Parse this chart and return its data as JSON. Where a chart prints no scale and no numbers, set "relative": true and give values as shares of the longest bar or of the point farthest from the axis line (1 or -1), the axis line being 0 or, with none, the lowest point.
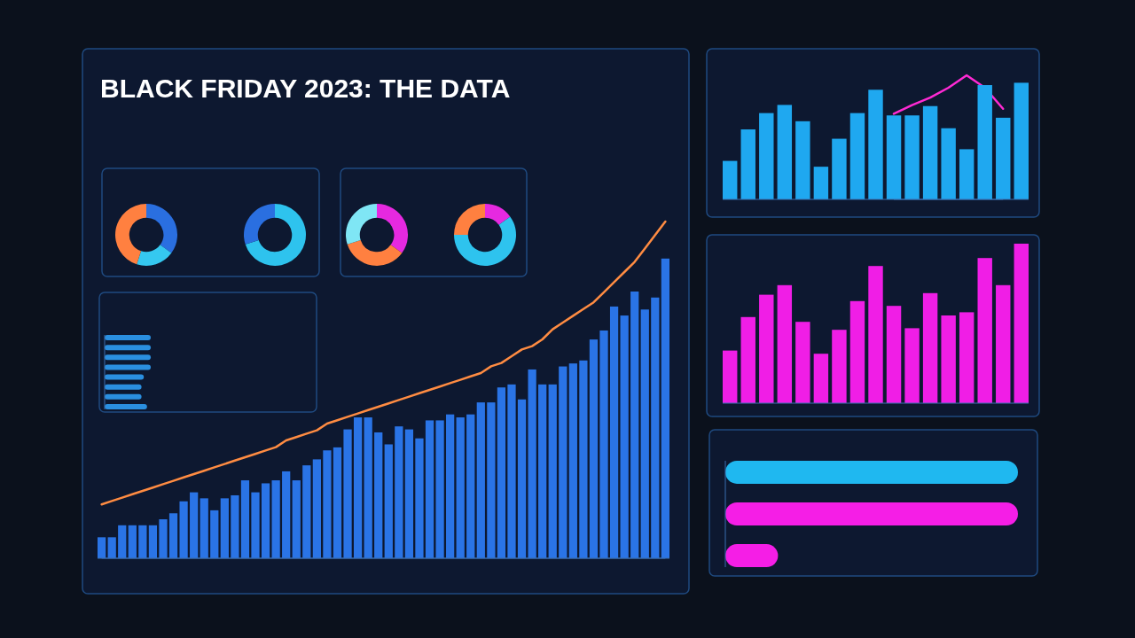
{
  "chart_data": [
    {
      "type": "bar",
      "title": "BLACK FRIDAY 2023: THE DATA",
      "relative": true,
      "categories": [
        null,
        null,
        null,
        null,
        null,
        null,
        null,
        null,
        null,
        null,
        null,
        null,
        null,
        null,
        null,
        null,
        null,
        null,
        null,
        null,
        null,
        null,
        null,
        null,
        null,
        null,
        null,
        null,
        null,
        null,
        null,
        null,
        null,
        null,
        null,
        null,
        null,
        null,
        null,
        null,
        null,
        null,
        null,
        null,
        null,
        null,
        null,
        null,
        null,
        null,
        null,
        null,
        null,
        null,
        null,
        null
      ],
      "series": [
        {
          "color": "#2a74e6",
          "values": [
            0.07,
            0.07,
            0.11,
            0.11,
            0.11,
            0.11,
            0.13,
            0.15,
            0.19,
            0.22,
            0.2,
            0.16,
            0.2,
            0.21,
            0.26,
            0.22,
            0.25,
            0.26,
            0.29,
            0.26,
            0.31,
            0.33,
            0.36,
            0.37,
            0.43,
            0.47,
            0.47,
            0.42,
            0.38,
            0.44,
            0.43,
            0.4,
            0.46,
            0.46,
            0.48,
            0.47,
            0.48,
            0.52,
            0.52,
            0.57,
            0.58,
            0.53,
            0.63,
            0.58,
            0.58,
            0.64,
            0.65,
            0.66,
            0.73,
            0.76,
            0.84,
            0.81,
            0.89,
            0.83,
            0.87,
            1.0
          ]
        }
      ]
    },
    {
      "type": "line",
      "relative": true,
      "categories": [
        null,
        null,
        null,
        null,
        null,
        null,
        null,
        null,
        null,
        null,
        null,
        null,
        null,
        null,
        null,
        null,
        null,
        null,
        null,
        null,
        null,
        null,
        null,
        null,
        null,
        null,
        null,
        null,
        null,
        null,
        null,
        null,
        null,
        null,
        null,
        null,
        null,
        null,
        null,
        null,
        null,
        null,
        null,
        null,
        null,
        null,
        null,
        null,
        null,
        null,
        null,
        null,
        null,
        null,
        null,
        null
      ],
      "series": [
        {
          "color": "#ff8c42",
          "values": [
            0.16,
            0.17,
            0.18,
            0.19,
            0.2,
            0.21,
            0.22,
            0.23,
            0.24,
            0.25,
            0.26,
            0.27,
            0.28,
            0.29,
            0.3,
            0.31,
            0.32,
            0.33,
            0.35,
            0.36,
            0.37,
            0.38,
            0.4,
            0.41,
            0.42,
            0.43,
            0.44,
            0.45,
            0.46,
            0.47,
            0.48,
            0.49,
            0.5,
            0.51,
            0.52,
            0.53,
            0.54,
            0.55,
            0.57,
            0.58,
            0.6,
            0.62,
            0.63,
            0.65,
            0.68,
            0.7,
            0.72,
            0.74,
            0.76,
            0.79,
            0.82,
            0.85,
            0.88,
            0.92,
            0.96,
            1.0
          ]
        }
      ]
    },
    {
      "type": "bar",
      "relative": true,
      "categories": [
        null,
        null,
        null,
        null,
        null,
        null,
        null,
        null,
        null,
        null,
        null,
        null,
        null,
        null,
        null,
        null,
        null
      ],
      "series": [
        {
          "color": "#1fa8f0",
          "values": [
            0.33,
            0.6,
            0.74,
            0.81,
            0.67,
            0.28,
            0.52,
            0.74,
            0.94,
            0.72,
            0.72,
            0.8,
            0.61,
            0.43,
            0.98,
            0.7,
            1.0
          ]
        }
      ]
    },
    {
      "type": "line",
      "relative": true,
      "categories": [
        null,
        null,
        null,
        null,
        null,
        null,
        null
      ],
      "series": [
        {
          "color": "#ff2ad4",
          "values": [
            0.69,
            0.76,
            0.82,
            0.9,
            1.0,
            0.9,
            0.73
          ]
        }
      ]
    },
    {
      "type": "bar",
      "relative": true,
      "categories": [
        null,
        null,
        null,
        null,
        null,
        null,
        null,
        null,
        null,
        null,
        null,
        null,
        null,
        null,
        null,
        null,
        null
      ],
      "series": [
        {
          "color": "#f01ee6",
          "values": [
            0.33,
            0.54,
            0.68,
            0.74,
            0.51,
            0.31,
            0.46,
            0.64,
            0.86,
            0.61,
            0.47,
            0.69,
            0.55,
            0.57,
            0.91,
            0.74,
            1.0
          ]
        }
      ]
    },
    {
      "type": "bar",
      "orientation": "horizontal",
      "relative": true,
      "categories": [
        null,
        null,
        null
      ],
      "values": [
        1,
        1,
        0.18
      ],
      "colors": [
        "#1fb8f0",
        "#f51ee6",
        "#f51ee6"
      ]
    },
    {
      "type": "bar",
      "orientation": "horizontal",
      "relative": true,
      "categories": [
        null,
        null,
        null,
        null,
        null,
        null,
        null,
        null
      ],
      "values": [
        1,
        1,
        1,
        1,
        0.85,
        0.8,
        0.8,
        0.92
      ],
      "colors": [
        "#2a8fe0",
        "#2a8fe0",
        "#2a8fe0",
        "#2a8fe0",
        "#2a8fe0",
        "#2a8fe0",
        "#2a8fe0",
        "#2a8fe0"
      ]
    },
    {
      "type": "donut",
      "categories": [
        null,
        null,
        null
      ],
      "values": [
        35,
        20,
        45
      ],
      "colors": [
        "#2a6fe0",
        "#35c8f0",
        "#ff8040"
      ]
    },
    {
      "type": "donut",
      "categories": [
        null,
        null
      ],
      "values": [
        70,
        30
      ],
      "colors": [
        "#2ec3ee",
        "#2a6fe0"
      ]
    },
    {
      "type": "donut",
      "categories": [
        null,
        null,
        null
      ],
      "values": [
        35,
        35,
        30
      ],
      "colors": [
        "#e629e0",
        "#ff8040",
        "#7fe6f5"
      ]
    },
    {
      "type": "donut",
      "categories": [
        null,
        null,
        null
      ],
      "values": [
        15,
        60,
        25
      ],
      "colors": [
        "#e629e0",
        "#2ec3ee",
        "#ff8040"
      ]
    }
  ]
}
